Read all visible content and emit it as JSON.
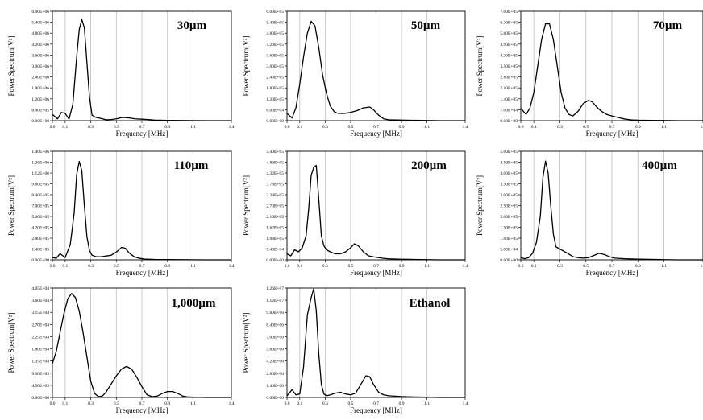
{
  "figure": {
    "xlabel": "Frequency [MHz]",
    "ylabel": "Power Spectrum[V²]"
  },
  "chart_data": [
    {
      "type": "line",
      "label": "30µm",
      "xlabel": "Frequency [MHz]",
      "ylabel": "Power Spectrum[V²]",
      "xlim": [
        0,
        1.4
      ],
      "x_ticks": [
        0,
        0.1,
        0.3,
        0.5,
        0.7,
        0.9,
        1.1,
        1.4
      ],
      "x_tick_labels": [
        "0.0",
        "0.1",
        "0.3",
        "0.5",
        "0.7",
        "0.9",
        "1.1",
        "1.4"
      ],
      "ylim": [
        0,
        6000000
      ],
      "y_tick_labels": [
        "0.00E+00",
        "6.00E+05",
        "1.20E+06",
        "1.80E+06",
        "2.40E+06",
        "3.00E+06",
        "3.60E+06",
        "4.20E+06",
        "4.80E+06",
        "5.40E+06",
        "6.00E+06"
      ],
      "grid": "vertical",
      "series": [
        {
          "x": [
            0,
            0.04,
            0.07,
            0.1,
            0.13,
            0.16,
            0.19,
            0.21,
            0.23,
            0.25,
            0.27,
            0.29,
            0.31,
            0.34,
            0.38,
            0.42,
            0.46,
            0.5,
            0.55,
            0.6,
            0.65,
            0.7,
            0.75,
            0.8,
            0.9,
            1.0,
            1.1,
            1.2,
            1.3,
            1.4
          ],
          "y": [
            350000,
            100000,
            450000,
            400000,
            80000,
            900000,
            3500000,
            5000000,
            5550000,
            5100000,
            3200000,
            1300000,
            300000,
            180000,
            120000,
            50000,
            60000,
            100000,
            180000,
            150000,
            100000,
            80000,
            60000,
            30000,
            15000,
            10000,
            5000,
            0,
            0,
            0
          ]
        }
      ]
    },
    {
      "type": "line",
      "label": "50µm",
      "xlabel": "Frequency [MHz]",
      "ylabel": "Power Spectrum[V²]",
      "xlim": [
        0,
        1.4
      ],
      "x_ticks": [
        0,
        0.1,
        0.3,
        0.5,
        0.7,
        0.9,
        1.1,
        1.4
      ],
      "x_tick_labels": [
        "0.0",
        "0.1",
        "0.3",
        "0.5",
        "0.7",
        "0.9",
        "1.1",
        "1.4"
      ],
      "ylim": [
        0,
        600000
      ],
      "y_tick_labels": [
        "0.00E+00",
        "6.00E+04",
        "1.20E+05",
        "1.80E+05",
        "2.40E+05",
        "3.00E+05",
        "3.60E+05",
        "4.20E+05",
        "4.80E+05",
        "5.40E+05",
        "6.00E+05"
      ],
      "grid": "vertical",
      "series": [
        {
          "x": [
            0,
            0.04,
            0.07,
            0.1,
            0.13,
            0.16,
            0.19,
            0.22,
            0.25,
            0.28,
            0.31,
            0.34,
            0.37,
            0.4,
            0.45,
            0.5,
            0.55,
            0.6,
            0.65,
            0.68,
            0.72,
            0.76,
            0.8,
            0.9,
            1.0,
            1.1,
            1.2,
            1.3,
            1.4
          ],
          "y": [
            40000,
            15000,
            70000,
            200000,
            350000,
            480000,
            545000,
            520000,
            400000,
            250000,
            150000,
            80000,
            50000,
            40000,
            40000,
            45000,
            55000,
            70000,
            75000,
            60000,
            30000,
            10000,
            5000,
            3000,
            2000,
            1000,
            0,
            0,
            0
          ]
        }
      ]
    },
    {
      "type": "line",
      "label": "70µm",
      "xlabel": "Frequency [MHz]",
      "ylabel": "Power Spectrum[V²]",
      "xlim": [
        0,
        1.4
      ],
      "x_ticks": [
        0,
        0.1,
        0.3,
        0.5,
        0.7,
        0.9,
        1.1,
        1.4
      ],
      "x_tick_labels": [
        "0.0",
        "0.1",
        "0.3",
        "0.5",
        "0.7",
        "0.9",
        "1.1",
        "1.4"
      ],
      "ylim": [
        0,
        700000
      ],
      "y_tick_labels": [
        "0.00E+00",
        "7.00E+04",
        "1.40E+05",
        "2.10E+05",
        "2.80E+05",
        "3.50E+05",
        "4.20E+05",
        "4.90E+05",
        "5.60E+05",
        "6.30E+05",
        "7.00E+05"
      ],
      "grid": "vertical",
      "series": [
        {
          "x": [
            0,
            0.04,
            0.07,
            0.1,
            0.13,
            0.16,
            0.19,
            0.22,
            0.25,
            0.28,
            0.31,
            0.34,
            0.37,
            0.4,
            0.44,
            0.48,
            0.52,
            0.55,
            0.58,
            0.62,
            0.66,
            0.7,
            0.75,
            0.8,
            0.85,
            0.9,
            1.0,
            1.1,
            1.2,
            1.3,
            1.4
          ],
          "y": [
            80000,
            40000,
            80000,
            180000,
            350000,
            520000,
            620000,
            620000,
            520000,
            350000,
            180000,
            80000,
            40000,
            30000,
            60000,
            110000,
            130000,
            120000,
            90000,
            60000,
            40000,
            30000,
            20000,
            10000,
            5000,
            3000,
            2000,
            1000,
            0,
            0,
            0
          ]
        }
      ]
    },
    {
      "type": "line",
      "label": "110µm",
      "xlabel": "Frequency [MHz]",
      "ylabel": "Power Spectrum[V²]",
      "xlim": [
        0,
        1.4
      ],
      "x_ticks": [
        0,
        0.1,
        0.3,
        0.5,
        0.7,
        0.9,
        1.1,
        1.4
      ],
      "x_tick_labels": [
        "0.0",
        "0.1",
        "0.3",
        "0.5",
        "0.7",
        "0.9",
        "1.1",
        "1.4"
      ],
      "ylim": [
        0,
        1400000
      ],
      "y_tick_labels": [
        "0.00E+00",
        "1.40E+05",
        "2.80E+05",
        "4.20E+05",
        "5.60E+05",
        "7.00E+05",
        "8.40E+05",
        "9.80E+05",
        "1.12E+06",
        "1.26E+06",
        "1.40E+06"
      ],
      "grid": "vertical",
      "series": [
        {
          "x": [
            0,
            0.03,
            0.06,
            0.1,
            0.14,
            0.17,
            0.19,
            0.21,
            0.23,
            0.25,
            0.27,
            0.29,
            0.31,
            0.34,
            0.38,
            0.42,
            0.46,
            0.5,
            0.54,
            0.57,
            0.6,
            0.64,
            0.68,
            0.72,
            0.8,
            0.9,
            1.0,
            1.1,
            1.2,
            1.3,
            1.4
          ],
          "y": [
            30000,
            20000,
            80000,
            30000,
            200000,
            600000,
            1100000,
            1270000,
            1150000,
            700000,
            300000,
            120000,
            60000,
            40000,
            40000,
            50000,
            60000,
            100000,
            160000,
            150000,
            90000,
            40000,
            20000,
            10000,
            5000,
            3000,
            2000,
            1000,
            0,
            0,
            0
          ]
        }
      ]
    },
    {
      "type": "line",
      "label": "200µm",
      "xlabel": "Frequency [MHz]",
      "ylabel": "Power Spectrum[V²]",
      "xlim": [
        0,
        1.4
      ],
      "x_ticks": [
        0,
        0.1,
        0.3,
        0.5,
        0.7,
        0.9,
        1.1,
        1.4
      ],
      "x_tick_labels": [
        "0.0",
        "0.1",
        "0.3",
        "0.5",
        "0.7",
        "0.9",
        "1.1",
        "1.4"
      ],
      "ylim": [
        0,
        540000
      ],
      "y_tick_labels": [
        "0.00E+00",
        "5.40E+04",
        "1.08E+05",
        "1.62E+05",
        "2.16E+05",
        "2.70E+05",
        "3.24E+05",
        "3.78E+05",
        "4.32E+05",
        "4.86E+05",
        "5.40E+05"
      ],
      "grid": "vertical",
      "series": [
        {
          "x": [
            0,
            0.03,
            0.06,
            0.09,
            0.12,
            0.15,
            0.17,
            0.19,
            0.21,
            0.23,
            0.25,
            0.27,
            0.29,
            0.31,
            0.34,
            0.38,
            0.42,
            0.46,
            0.5,
            0.53,
            0.56,
            0.6,
            0.64,
            0.68,
            0.75,
            0.8,
            0.9,
            1.0,
            1.1,
            1.2,
            1.3,
            1.4
          ],
          "y": [
            30000,
            20000,
            50000,
            40000,
            60000,
            120000,
            250000,
            420000,
            460000,
            470000,
            300000,
            120000,
            70000,
            50000,
            40000,
            30000,
            30000,
            40000,
            60000,
            80000,
            70000,
            40000,
            20000,
            15000,
            8000,
            5000,
            3000,
            2000,
            1000,
            0,
            0,
            0
          ]
        }
      ]
    },
    {
      "type": "line",
      "label": "400µm",
      "xlabel": "Frequency [MHz]",
      "ylabel": "Power Spectrum[V²]",
      "xlim": [
        0,
        1.4
      ],
      "x_ticks": [
        0,
        0.1,
        0.3,
        0.5,
        0.7,
        0.9,
        1.1,
        1.4
      ],
      "x_tick_labels": [
        "0.0",
        "0.1",
        "0.3",
        "0.5",
        "0.7",
        "0.9",
        "1.1",
        "1.4"
      ],
      "ylim": [
        0,
        500000
      ],
      "y_tick_labels": [
        "0.00E+00",
        "5.00E+04",
        "1.00E+05",
        "1.50E+05",
        "2.00E+05",
        "2.50E+05",
        "3.00E+05",
        "3.50E+05",
        "4.00E+05",
        "4.50E+05",
        "5.00E+05"
      ],
      "grid": "vertical",
      "series": [
        {
          "x": [
            0,
            0.03,
            0.06,
            0.09,
            0.12,
            0.15,
            0.17,
            0.19,
            0.21,
            0.23,
            0.25,
            0.27,
            0.3,
            0.33,
            0.36,
            0.4,
            0.44,
            0.48,
            0.52,
            0.56,
            0.6,
            0.64,
            0.68,
            0.72,
            0.8,
            0.9,
            1.0,
            1.1,
            1.2,
            1.3,
            1.4
          ],
          "y": [
            10000,
            5000,
            10000,
            30000,
            80000,
            200000,
            380000,
            455000,
            400000,
            250000,
            120000,
            60000,
            50000,
            40000,
            30000,
            15000,
            10000,
            8000,
            10000,
            20000,
            30000,
            25000,
            15000,
            8000,
            5000,
            3000,
            2000,
            1000,
            0,
            0,
            0
          ]
        }
      ]
    },
    {
      "type": "line",
      "label": "1,000µm",
      "xlabel": "Frequency [MHz]",
      "ylabel": "Power Spectrum[V²]",
      "xlim": [
        0,
        1.4
      ],
      "x_ticks": [
        0,
        0.1,
        0.3,
        0.5,
        0.7,
        0.9,
        1.1,
        1.4
      ],
      "x_tick_labels": [
        "0.0",
        "0.1",
        "0.3",
        "0.5",
        "0.7",
        "0.9",
        "1.1",
        "1.4"
      ],
      "ylim": [
        0,
        40500
      ],
      "y_tick_labels": [
        "0.00E+00",
        "4.50E+03",
        "9.00E+03",
        "1.35E+04",
        "1.80E+04",
        "2.25E+04",
        "2.70E+04",
        "3.15E+04",
        "3.60E+04",
        "4.05E+04"
      ],
      "grid": "vertical",
      "series": [
        {
          "x": [
            0,
            0.03,
            0.06,
            0.09,
            0.12,
            0.15,
            0.18,
            0.21,
            0.24,
            0.27,
            0.3,
            0.33,
            0.36,
            0.39,
            0.42,
            0.46,
            0.5,
            0.54,
            0.58,
            0.62,
            0.66,
            0.7,
            0.74,
            0.78,
            0.82,
            0.86,
            0.9,
            0.94,
            0.98,
            1.02,
            1.06,
            1.1,
            1.2,
            1.3,
            1.4
          ],
          "y": [
            12500,
            17000,
            24000,
            31000,
            36500,
            38500,
            37000,
            32000,
            24000,
            15000,
            6000,
            1500,
            300,
            500,
            2000,
            5000,
            8000,
            10500,
            11500,
            10500,
            7500,
            4000,
            1000,
            300,
            500,
            1500,
            2200,
            2200,
            1500,
            500,
            200,
            100,
            0,
            0,
            0
          ]
        }
      ]
    },
    {
      "type": "line",
      "label": "Ethanol",
      "xlabel": "Frequency [MHz]",
      "ylabel": "Power Spectrum[V²]",
      "xlim": [
        0,
        1.4
      ],
      "x_ticks": [
        0,
        0.1,
        0.3,
        0.5,
        0.7,
        0.9,
        1.1,
        1.4
      ],
      "x_tick_labels": [
        "0.0",
        "0.1",
        "0.3",
        "0.5",
        "0.7",
        "0.9",
        "1.1",
        "1.4"
      ],
      "ylim": [
        0,
        12600000
      ],
      "y_tick_labels": [
        "0.00E+00",
        "1.40E+06",
        "2.80E+06",
        "4.20E+06",
        "5.60E+06",
        "7.00E+06",
        "8.40E+06",
        "9.80E+06",
        "1.12E+07",
        "1.26E+07"
      ],
      "grid": "vertical",
      "series": [
        {
          "x": [
            0,
            0.04,
            0.07,
            0.1,
            0.13,
            0.16,
            0.19,
            0.21,
            0.23,
            0.25,
            0.27,
            0.29,
            0.31,
            0.34,
            0.38,
            0.42,
            0.46,
            0.5,
            0.54,
            0.58,
            0.62,
            0.65,
            0.68,
            0.72,
            0.76,
            0.8,
            0.85,
            0.9,
            1.0,
            1.1,
            1.2,
            1.3,
            1.4
          ],
          "y": [
            200000,
            900000,
            300000,
            400000,
            3500000,
            9500000,
            11500000,
            12500000,
            10000000,
            5000000,
            1500000,
            400000,
            200000,
            300000,
            500000,
            600000,
            400000,
            300000,
            500000,
            1500000,
            2500000,
            2400000,
            1500000,
            600000,
            300000,
            200000,
            150000,
            100000,
            50000,
            30000,
            0,
            0,
            0
          ]
        }
      ]
    }
  ]
}
